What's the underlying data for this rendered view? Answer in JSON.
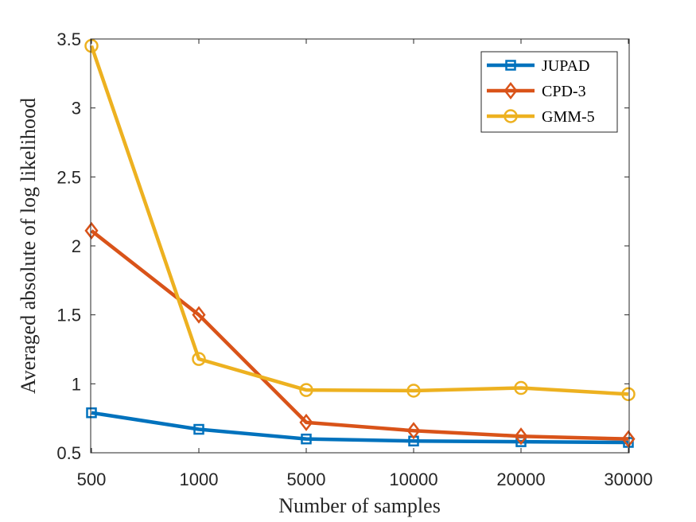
{
  "chart_data": {
    "type": "line",
    "categories": [
      "500",
      "1000",
      "5000",
      "10000",
      "20000",
      "30000"
    ],
    "xlabel": "Number of samples",
    "ylabel": "Averaged absolute of log likelihood",
    "ylim": [
      0.5,
      3.5
    ],
    "yticks": [
      "0.5",
      "1",
      "1.5",
      "2",
      "2.5",
      "3",
      "3.5"
    ],
    "ytick_values": [
      0.5,
      1,
      1.5,
      2,
      2.5,
      3,
      3.5
    ],
    "grid": false,
    "legend_position": "top-right",
    "series": [
      {
        "name": "JUPAD",
        "marker": "square",
        "color": "#0072BD",
        "values": [
          0.79,
          0.67,
          0.6,
          0.585,
          0.58,
          0.575
        ]
      },
      {
        "name": "CPD-3",
        "marker": "diamond",
        "color": "#D95319",
        "values": [
          2.11,
          1.5,
          0.72,
          0.66,
          0.62,
          0.6
        ]
      },
      {
        "name": "GMM-5",
        "marker": "circle",
        "color": "#EDB120",
        "values": [
          3.45,
          1.18,
          0.955,
          0.95,
          0.97,
          0.925
        ]
      }
    ]
  }
}
